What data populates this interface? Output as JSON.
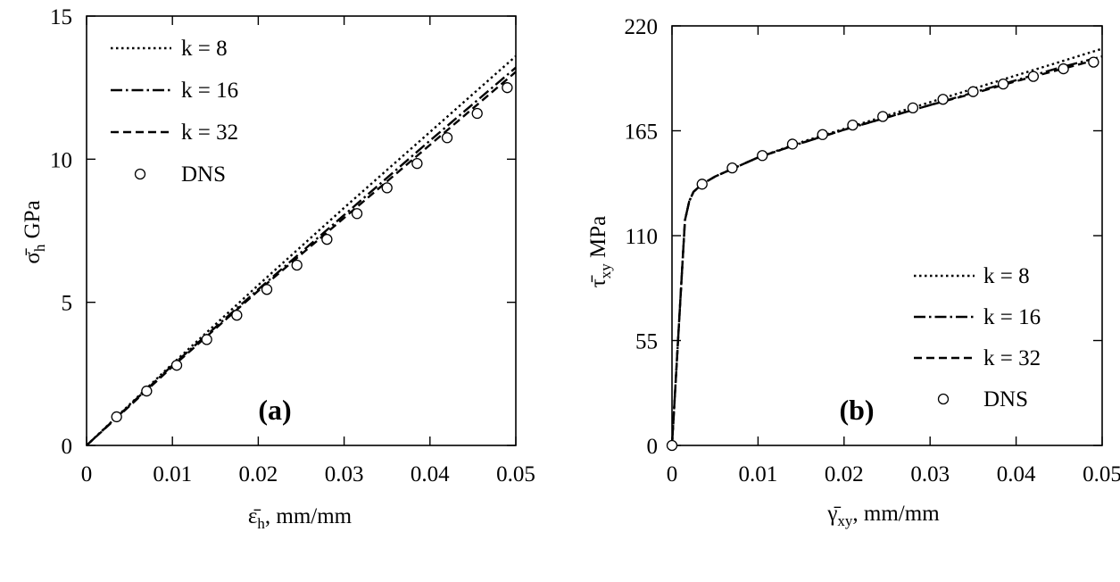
{
  "chart_data": [
    {
      "panel": "(a)",
      "type": "line",
      "xlabel": "ε̄h, mm/mm",
      "ylabel": "σ̄h GPa",
      "xlim": [
        0,
        0.05
      ],
      "ylim": [
        0,
        15
      ],
      "xticks": [
        "0",
        "0.01",
        "0.02",
        "0.03",
        "0.04",
        "0.05"
      ],
      "yticks": [
        "0",
        "5",
        "10",
        "15"
      ],
      "legend_position": "top-left",
      "series": [
        {
          "name": "k = 8",
          "style": "dotted",
          "x": [
            0,
            0.01,
            0.02,
            0.03,
            0.04,
            0.05
          ],
          "y": [
            0,
            2.85,
            5.6,
            8.3,
            10.95,
            13.6
          ]
        },
        {
          "name": "k = 16",
          "style": "dashdot",
          "x": [
            0,
            0.01,
            0.02,
            0.03,
            0.04,
            0.05
          ],
          "y": [
            0,
            2.8,
            5.45,
            8.05,
            10.65,
            13.2
          ]
        },
        {
          "name": "k = 32",
          "style": "dashed",
          "x": [
            0,
            0.01,
            0.02,
            0.03,
            0.04,
            0.05
          ],
          "y": [
            0,
            2.75,
            5.4,
            7.95,
            10.5,
            13.05
          ]
        },
        {
          "name": "DNS",
          "style": "markers",
          "x": [
            0.0035,
            0.007,
            0.0105,
            0.014,
            0.0175,
            0.021,
            0.0245,
            0.028,
            0.0315,
            0.035,
            0.0385,
            0.042,
            0.0455,
            0.049
          ],
          "y": [
            1.0,
            1.9,
            2.8,
            3.7,
            4.55,
            5.45,
            6.3,
            7.2,
            8.1,
            9.0,
            9.85,
            10.75,
            11.6,
            12.5
          ]
        }
      ]
    },
    {
      "panel": "(b)",
      "type": "line",
      "xlabel": "γ̄xy, mm/mm",
      "ylabel": "τ̄xy MPa",
      "xlim": [
        0,
        0.05
      ],
      "ylim": [
        0,
        220
      ],
      "xticks": [
        "0",
        "0.01",
        "0.02",
        "0.03",
        "0.04",
        "0.05"
      ],
      "yticks": [
        "0",
        "55",
        "110",
        "165",
        "220"
      ],
      "legend_position": "bottom-right",
      "series": [
        {
          "name": "k = 8",
          "style": "dotted",
          "x": [
            0,
            0.0015,
            0.002,
            0.0025,
            0.0035,
            0.005,
            0.0075,
            0.01,
            0.015,
            0.02,
            0.025,
            0.03,
            0.035,
            0.04,
            0.045,
            0.05
          ],
          "y": [
            0,
            118,
            128,
            133,
            137,
            141,
            146,
            151,
            159,
            166,
            173,
            180,
            187,
            194,
            201,
            208
          ]
        },
        {
          "name": "k = 16",
          "style": "dashdot",
          "x": [
            0,
            0.0015,
            0.002,
            0.0025,
            0.0035,
            0.005,
            0.0075,
            0.01,
            0.015,
            0.02,
            0.025,
            0.03,
            0.035,
            0.04,
            0.045,
            0.05
          ],
          "y": [
            0,
            118,
            128,
            133,
            137,
            141,
            146,
            151,
            158.5,
            165.5,
            172,
            178.5,
            185,
            191.5,
            198,
            204
          ]
        },
        {
          "name": "k = 32",
          "style": "dashed",
          "x": [
            0,
            0.0015,
            0.002,
            0.0025,
            0.0035,
            0.005,
            0.0075,
            0.01,
            0.015,
            0.02,
            0.025,
            0.03,
            0.035,
            0.04,
            0.045,
            0.05
          ],
          "y": [
            0,
            118,
            128,
            133,
            137,
            141,
            146,
            151,
            158.5,
            165.5,
            172,
            178.5,
            184.5,
            191,
            197,
            203
          ]
        },
        {
          "name": "DNS",
          "style": "markers",
          "x": [
            0,
            0.0035,
            0.007,
            0.0105,
            0.014,
            0.0175,
            0.021,
            0.0245,
            0.028,
            0.0315,
            0.035,
            0.0385,
            0.042,
            0.0455,
            0.049
          ],
          "y": [
            0,
            137,
            145.5,
            152,
            158,
            163,
            168,
            172.5,
            177,
            181.5,
            185.5,
            189.5,
            193.5,
            197.5,
            201
          ]
        }
      ]
    }
  ]
}
